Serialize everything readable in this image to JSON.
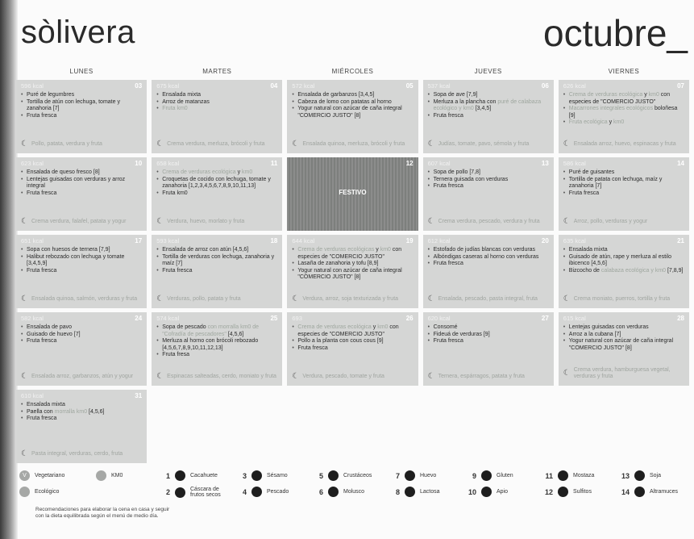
{
  "brand": "sòlivera",
  "month": "octubre_",
  "weekdays": [
    "LUNES",
    "MARTES",
    "MIÉRCOLES",
    "JUEVES",
    "VIERNES"
  ],
  "cards": [
    {
      "kcal": "596 kcal",
      "day": "03",
      "items": [
        [
          [
            "Puré de legumbres",
            0
          ]
        ],
        [
          [
            "Tortilla de atún con lechuga, tomate y zanahoria [7]",
            0
          ]
        ],
        [
          [
            "Fruta fresca",
            0
          ]
        ]
      ],
      "dinner": "Pollo, patata, verdura y fruta"
    },
    {
      "kcal": "675 kcal",
      "day": "04",
      "items": [
        [
          [
            "Ensalada mixta",
            0
          ]
        ],
        [
          [
            "Arroz de matanzas",
            0
          ]
        ],
        [
          [
            "Fruta km0",
            1
          ]
        ]
      ],
      "dinner": "Crema verdura, merluza, brócoli y fruta"
    },
    {
      "kcal": "572 kcal",
      "day": "05",
      "items": [
        [
          [
            "Ensalada de garbanzos [3,4,5]",
            0
          ]
        ],
        [
          [
            "Cabeza de lomo con patatas al horno",
            0
          ]
        ],
        [
          [
            "Yogur natural con azúcar de caña integral \"COMERCIO JUSTO\" [8]",
            0
          ]
        ]
      ],
      "dinner": "Ensalada quinoa, merluza, brócoli y fruta"
    },
    {
      "kcal": "537 kcal",
      "day": "06",
      "items": [
        [
          [
            "Sopa de ave [7,9]",
            0
          ]
        ],
        [
          [
            "Merluza a la plancha con ",
            0
          ],
          [
            "puré de calabaza ecológico y km0",
            1
          ],
          [
            " [3,4,5]",
            0
          ]
        ],
        [
          [
            "Fruta fresca",
            0
          ]
        ]
      ],
      "dinner": "Judías, tomate, pavo, sémola y fruta"
    },
    {
      "kcal": "626 kcal",
      "day": "07",
      "items": [
        [
          [
            "Crema de verduras ecológica ",
            1
          ],
          [
            "y",
            0
          ],
          [
            " km0",
            1
          ],
          [
            " con especies de \"COMERCIO JUSTO\"",
            0
          ]
        ],
        [
          [
            "Macarrones integrales ecológicos",
            1
          ],
          [
            " boloñesa [9]",
            0
          ]
        ],
        [
          [
            "Fruta ecológica ",
            1
          ],
          [
            "y",
            0
          ],
          [
            " km0",
            1
          ]
        ]
      ],
      "dinner": "Ensalada arroz, huevo, espinacas y fruta"
    },
    {
      "kcal": "623 kcal",
      "day": "10",
      "items": [
        [
          [
            "Ensalada de queso fresco [8]",
            0
          ]
        ],
        [
          [
            "Lentejas guisadas con verduras y arroz integral",
            0
          ]
        ],
        [
          [
            "Fruta fresca",
            0
          ]
        ]
      ],
      "dinner": "Crema verdura, falafel, patata y yogur"
    },
    {
      "kcal": "658 kcal",
      "day": "11",
      "items": [
        [
          [
            "Crema de verduras ecológica ",
            1
          ],
          [
            "y",
            0
          ],
          [
            " km0",
            1
          ]
        ],
        [
          [
            "Croquetas de cocido con lechuga, tomate y zanahoria [1,2,3,4,5,6,7,8,9,10,11,13]",
            0
          ]
        ],
        [
          [
            "Fruta km0",
            0
          ]
        ]
      ],
      "dinner": "Verdura, huevo, morlato y fruta"
    },
    {
      "festivo": "FESTIVO",
      "day": "12"
    },
    {
      "kcal": "607 kcal",
      "day": "13",
      "items": [
        [
          [
            "Sopa de pollo [7,8]",
            0
          ]
        ],
        [
          [
            "Ternera guisada con verduras",
            0
          ]
        ],
        [
          [
            "Fruta fresca",
            0
          ]
        ]
      ],
      "dinner": "Crema verdura, pescado, verdura y fruta"
    },
    {
      "kcal": "586 kcal",
      "day": "14",
      "items": [
        [
          [
            "Puré de guisantes",
            0
          ]
        ],
        [
          [
            "Tortilla de patata con lechuga, maíz y zanahoria [7]",
            0
          ]
        ],
        [
          [
            "Fruta fresca",
            0
          ]
        ]
      ],
      "dinner": "Arroz, pollo, verduras y yogur"
    },
    {
      "kcal": "651 kcal",
      "day": "17",
      "items": [
        [
          [
            "Sopa con huesos de ternera [7,9]",
            0
          ]
        ],
        [
          [
            "Halibut rebozado con lechuga y tomate [3,4,5,9]",
            0
          ]
        ],
        [
          [
            "Fruta fresca",
            0
          ]
        ]
      ],
      "dinner": "Ensalada quinoa, salmón, verduras y fruta"
    },
    {
      "kcal": "593 kcal",
      "day": "18",
      "items": [
        [
          [
            "Ensalada de arroz con atún [4,5,6]",
            0
          ]
        ],
        [
          [
            "Tortilla de verduras con lechuga, zanahoria y maíz [7]",
            0
          ]
        ],
        [
          [
            "Fruta fresca",
            0
          ]
        ]
      ],
      "dinner": "Verduras, pollo, patata y fruta"
    },
    {
      "kcal": "644 kcal",
      "day": "19",
      "items": [
        [
          [
            "Crema de verduras ecológicas ",
            1
          ],
          [
            "y",
            0
          ],
          [
            " km0",
            1
          ],
          [
            " con especies de \"COMERCIO JUSTO\"",
            0
          ]
        ],
        [
          [
            "Lasaña de zanahoria y tofu [8,9]",
            0
          ]
        ],
        [
          [
            "Yogur natural con azúcar de caña integral \"COMERCIO JUSTO\" [8]",
            0
          ]
        ]
      ],
      "dinner": "Verdura, arroz, soja texturizada y fruta"
    },
    {
      "kcal": "612 kcal",
      "day": "20",
      "items": [
        [
          [
            "Estofado de judías blancas con verduras",
            0
          ]
        ],
        [
          [
            "Albóndigas caseras al horno con verduras",
            0
          ]
        ],
        [
          [
            "Fruta fresca",
            0
          ]
        ]
      ],
      "dinner": "Ensalada, pescado, pasta integral, fruta"
    },
    {
      "kcal": "635 kcal",
      "day": "21",
      "items": [
        [
          [
            "Ensalada mixta",
            0
          ]
        ],
        [
          [
            "Guisado de atún, rape y merluza al estilo ibicenco [4,5,6]",
            0
          ]
        ],
        [
          [
            "Bizcocho de ",
            0
          ],
          [
            "calabaza ecológica y km0",
            1
          ],
          [
            " [7,8,9]",
            0
          ]
        ]
      ],
      "dinner": "Crema moniato, puerros, tortilla y fruta"
    },
    {
      "kcal": "582 kcal",
      "day": "24",
      "items": [
        [
          [
            "Ensalada de pavo",
            0
          ]
        ],
        [
          [
            "Guisado de huevo [7]",
            0
          ]
        ],
        [
          [
            "Fruta fresca",
            0
          ]
        ]
      ],
      "dinner": "Ensalada arroz, garbanzos, atún y yogur"
    },
    {
      "kcal": "574 kcal",
      "day": "25",
      "items": [
        [
          [
            "Sopa de pescado",
            0
          ],
          [
            " con morralla km0 de \"Cofradía de pescadores\"",
            1
          ],
          [
            " [4,5,6]",
            0
          ]
        ],
        [
          [
            "Merluza al horno con brócoli rebozado [4,5,6,7,8,9,10,11,12,13]",
            0
          ]
        ],
        [
          [
            "Fruta fresa",
            0
          ]
        ]
      ],
      "dinner": "Espinacas salteadas, cerdo, moniato y fruta"
    },
    {
      "kcal": "693",
      "day": "26",
      "items": [
        [
          [
            "Crema de verduras ecológica ",
            1
          ],
          [
            "y",
            0
          ],
          [
            " km0",
            1
          ],
          [
            " con especies de \"COMERCIO JUSTO\"",
            0
          ]
        ],
        [
          [
            "Pollo a la planta con cous cous [9]",
            0
          ]
        ],
        [
          [
            "Fruta fresca",
            0
          ]
        ]
      ],
      "dinner": "Verdura, pescado, tomate y fruta"
    },
    {
      "kcal": "620 kcal",
      "day": "27",
      "items": [
        [
          [
            "Consomé",
            0
          ]
        ],
        [
          [
            "Fideuá de verduras [9]",
            0
          ]
        ],
        [
          [
            "Fruta fresca",
            0
          ]
        ]
      ],
      "dinner": "Ternera, espárragos, patata y fruta"
    },
    {
      "kcal": "615 kcal",
      "day": "28",
      "items": [
        [
          [
            "Lentejas guisadas con verduras",
            0
          ]
        ],
        [
          [
            "Arroz a la cubana [7]",
            0
          ]
        ],
        [
          [
            "Yogur natural con azúcar de caña integral \"COMERCIO JUSTO\" [8]",
            0
          ]
        ]
      ],
      "dinner": "Crema verdura, hamburguesa vegetal, verduras y fruta"
    },
    {
      "kcal": "610 kcal",
      "day": "31",
      "items": [
        [
          [
            "Ensalada mixta",
            0
          ]
        ],
        [
          [
            "Paella con ",
            0
          ],
          [
            "morralla km0",
            1
          ],
          [
            " [4,5,6]",
            0
          ]
        ],
        [
          [
            "Fruta fresca",
            0
          ]
        ]
      ],
      "dinner": "Pasta integral, verduras, cerdo, fruta"
    }
  ],
  "legend": {
    "vegetariano": "Vegetariano",
    "km0": "KM0",
    "ecologico": "Ecológico",
    "note": "Recomendaciones para elaborar la cena en casa y seguir con la dieta equilibrada según el menú de medio día.",
    "allergens": [
      [
        "1",
        "Cacahuete"
      ],
      [
        "2",
        "Cáscara de frutos secos"
      ],
      [
        "3",
        "Sésamo"
      ],
      [
        "4",
        "Pescado"
      ],
      [
        "5",
        "Crustáceos"
      ],
      [
        "6",
        "Molusco"
      ],
      [
        "7",
        "Huevo"
      ],
      [
        "8",
        "Lactosa"
      ],
      [
        "9",
        "Gluten"
      ],
      [
        "10",
        "Apio"
      ],
      [
        "11",
        "Mostaza"
      ],
      [
        "12",
        "Sulfitos"
      ],
      [
        "13",
        "Soja"
      ],
      [
        "14",
        "Altramuces"
      ]
    ]
  },
  "colors": {
    "card": "#d5d6d5",
    "festivo": "#868786",
    "light_text": "#9fa79f"
  }
}
